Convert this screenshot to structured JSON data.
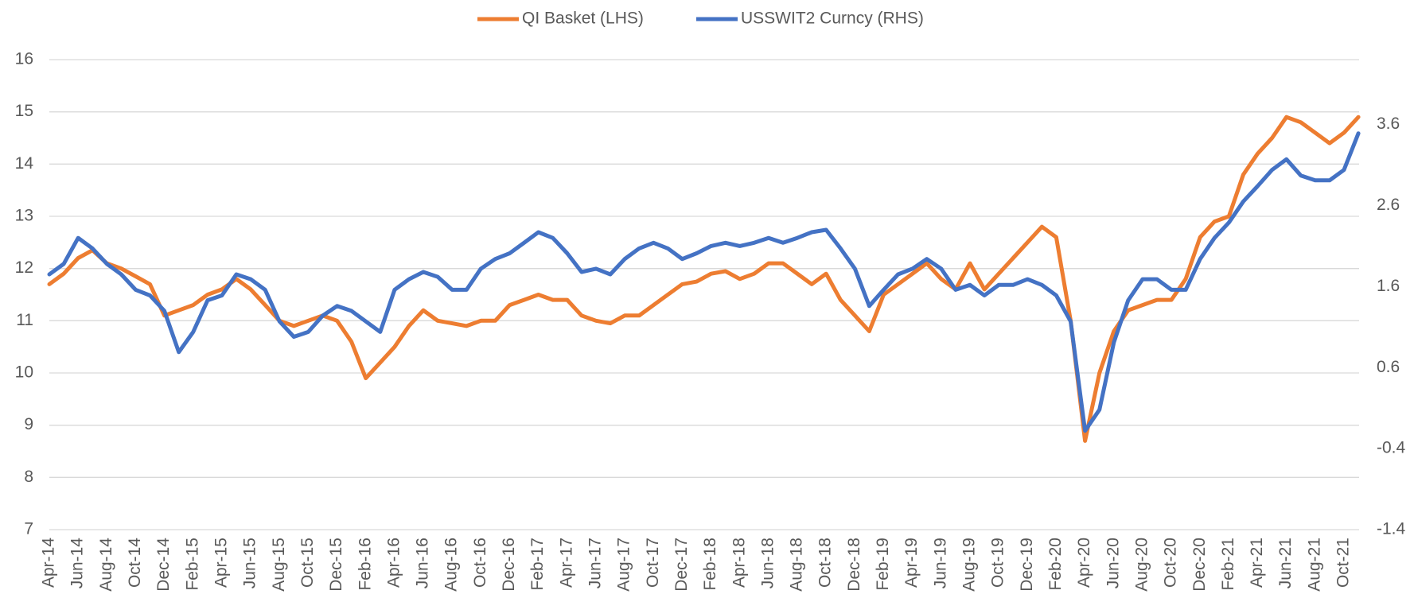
{
  "chart_data": {
    "type": "line",
    "categories": [
      "Apr-14",
      null,
      "Jun-14",
      null,
      "Aug-14",
      null,
      "Oct-14",
      null,
      "Dec-14",
      null,
      "Feb-15",
      null,
      "Apr-15",
      null,
      "Jun-15",
      null,
      "Aug-15",
      null,
      "Oct-15",
      null,
      "Dec-15",
      null,
      "Feb-16",
      null,
      "Apr-16",
      null,
      "Jun-16",
      null,
      "Aug-16",
      null,
      "Oct-16",
      null,
      "Dec-16",
      null,
      "Feb-17",
      null,
      "Apr-17",
      null,
      "Jun-17",
      null,
      "Aug-17",
      null,
      "Oct-17",
      null,
      "Dec-17",
      null,
      "Feb-18",
      null,
      "Apr-18",
      null,
      "Jun-18",
      null,
      "Aug-18",
      null,
      "Oct-18",
      null,
      "Dec-18",
      null,
      "Feb-19",
      null,
      "Apr-19",
      null,
      "Jun-19",
      null,
      "Aug-19",
      null,
      "Oct-19",
      null,
      "Dec-19",
      null,
      "Feb-20",
      null,
      "Apr-20",
      null,
      "Jun-20",
      null,
      "Aug-20",
      null,
      "Oct-20",
      null,
      "Dec-20",
      null,
      "Feb-21",
      null,
      "Apr-21",
      null,
      "Jun-21",
      null,
      "Aug-21",
      null,
      "Oct-21",
      null
    ],
    "series": [
      {
        "name": "QI Basket (LHS)",
        "color": "#ED7D31",
        "values": [
          11.7,
          11.9,
          12.2,
          12.35,
          12.1,
          12.0,
          11.85,
          11.7,
          11.1,
          11.2,
          11.3,
          11.5,
          11.6,
          11.8,
          11.6,
          11.3,
          11.0,
          10.9,
          11.0,
          11.1,
          11.0,
          10.6,
          9.9,
          10.2,
          10.5,
          10.9,
          11.2,
          11.0,
          10.95,
          10.9,
          11.0,
          11.0,
          11.3,
          11.4,
          11.5,
          11.4,
          11.4,
          11.1,
          11.0,
          10.95,
          11.1,
          11.1,
          11.3,
          11.5,
          11.7,
          11.75,
          11.9,
          11.95,
          11.8,
          11.9,
          12.1,
          12.1,
          11.9,
          11.7,
          11.9,
          11.4,
          11.1,
          10.8,
          11.5,
          11.7,
          11.9,
          12.1,
          11.8,
          11.6,
          12.1,
          11.6,
          11.9,
          12.2,
          12.5,
          12.8,
          12.6,
          11.0,
          8.7,
          10.0,
          10.8,
          11.2,
          11.3,
          11.4,
          11.4,
          11.8,
          12.6,
          12.9,
          13.0,
          13.8,
          14.2,
          14.5,
          14.9,
          14.8,
          14.6,
          14.4,
          14.6,
          14.9
        ]
      },
      {
        "name": "USSWIT2 Curncy (RHS)",
        "color": "#4472C4",
        "axis": "y2",
        "values": [
          1.75,
          1.88,
          2.2,
          2.07,
          1.88,
          1.75,
          1.56,
          1.49,
          1.3,
          0.79,
          1.04,
          1.43,
          1.49,
          1.75,
          1.69,
          1.56,
          1.17,
          0.98,
          1.04,
          1.24,
          1.36,
          1.3,
          1.17,
          1.04,
          1.56,
          1.69,
          1.78,
          1.72,
          1.56,
          1.56,
          1.82,
          1.94,
          2.01,
          2.14,
          2.27,
          2.2,
          2.01,
          1.78,
          1.82,
          1.75,
          1.94,
          2.07,
          2.14,
          2.07,
          1.94,
          2.01,
          2.1,
          2.14,
          2.1,
          2.14,
          2.2,
          2.14,
          2.2,
          2.27,
          2.3,
          2.07,
          1.82,
          1.36,
          1.56,
          1.75,
          1.82,
          1.94,
          1.82,
          1.56,
          1.62,
          1.49,
          1.62,
          1.62,
          1.69,
          1.62,
          1.49,
          1.17,
          -0.18,
          0.08,
          0.91,
          1.43,
          1.69,
          1.69,
          1.56,
          1.56,
          1.94,
          2.2,
          2.39,
          2.65,
          2.84,
          3.04,
          3.17,
          2.97,
          2.91,
          2.91,
          3.04,
          3.49
        ]
      }
    ],
    "ylim": [
      7,
      16
    ],
    "yticks": [
      7,
      8,
      9,
      10,
      11,
      12,
      13,
      14,
      15,
      16
    ],
    "y2lim": [
      -1.4,
      4.4
    ],
    "y2ticks": [
      -1.4,
      -0.4,
      0.6,
      1.6,
      2.6,
      3.6
    ],
    "grid": true,
    "legend": "top"
  }
}
